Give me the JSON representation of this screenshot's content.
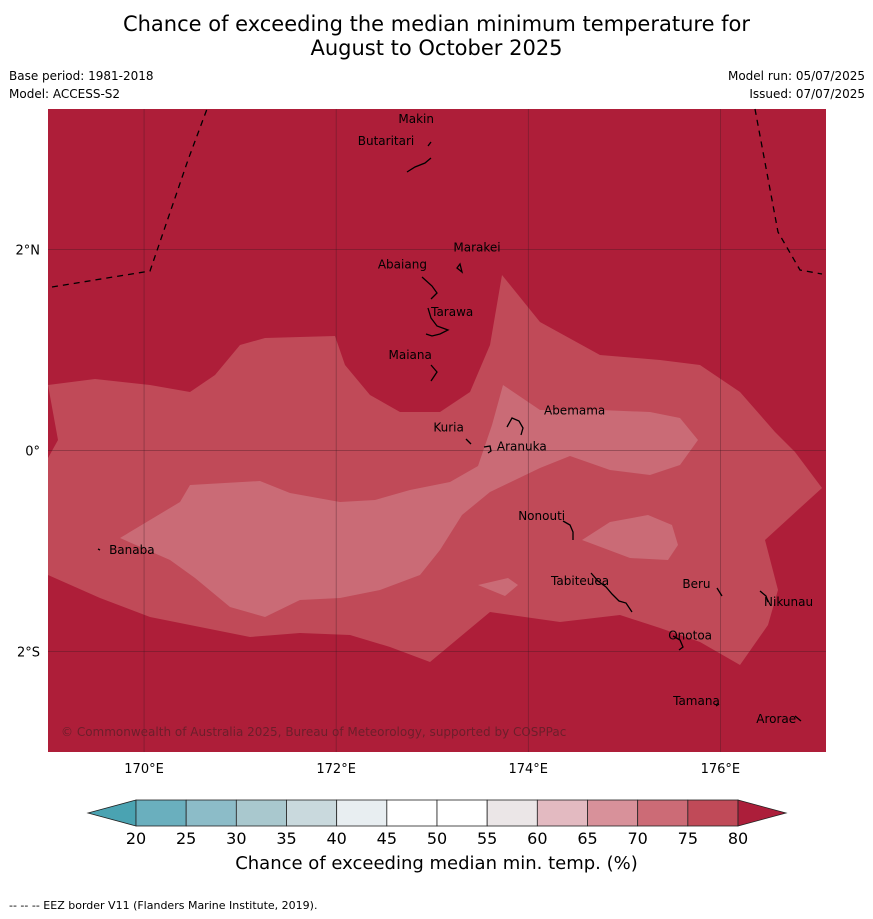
{
  "title": {
    "line1": "Chance of exceeding the median minimum temperature for",
    "line2": "August to October 2025"
  },
  "meta_left": {
    "base_period": "Base period: 1981-2018",
    "model": "Model: ACCESS-S2"
  },
  "meta_right": {
    "model_run": "Model run: 05/07/2025",
    "issued": "Issued: 07/07/2025"
  },
  "map": {
    "lon_range": [
      169,
      177.1
    ],
    "lat_range": [
      -3.0,
      3.4
    ],
    "lat_ticks": [
      {
        "value": 2,
        "label": "2°N"
      },
      {
        "value": 0,
        "label": "0°"
      },
      {
        "value": -2,
        "label": "2°S"
      }
    ],
    "lon_ticks": [
      {
        "value": 170,
        "label": "170°E"
      },
      {
        "value": 172,
        "label": "172°E"
      },
      {
        "value": 174,
        "label": "174°E"
      },
      {
        "value": 176,
        "label": "176°E"
      }
    ],
    "islands": [
      {
        "name": "Makin",
        "lon": 173.0,
        "lat": 3.3
      },
      {
        "name": "Butaritari",
        "lon": 172.8,
        "lat": 3.1
      },
      {
        "name": "Marakei",
        "lon": 173.3,
        "lat": 2.0
      },
      {
        "name": "Abaiang",
        "lon": 172.95,
        "lat": 1.85
      },
      {
        "name": "Tarawa",
        "lon": 173.0,
        "lat": 1.4
      },
      {
        "name": "Maiana",
        "lon": 173.0,
        "lat": 0.95
      },
      {
        "name": "Abemama",
        "lon": 173.9,
        "lat": 0.4
      },
      {
        "name": "Kuria",
        "lon": 173.4,
        "lat": 0.22
      },
      {
        "name": "Aranuka",
        "lon": 173.6,
        "lat": 0.17
      },
      {
        "name": "Banaba",
        "lon": 169.55,
        "lat": -0.87
      },
      {
        "name": "Nonouti",
        "lon": 174.4,
        "lat": -0.65
      },
      {
        "name": "Tabiteuea",
        "lon": 174.8,
        "lat": -1.3
      },
      {
        "name": "Beru",
        "lon": 175.98,
        "lat": -1.33
      },
      {
        "name": "Nikunau",
        "lon": 176.45,
        "lat": -1.35
      },
      {
        "name": "Onotoa",
        "lon": 175.55,
        "lat": -1.8
      },
      {
        "name": "Tamana",
        "lon": 175.97,
        "lat": -2.5
      },
      {
        "name": "Arorae",
        "lon": 176.8,
        "lat": -2.65
      }
    ],
    "copyright": "© Commonwealth of Australia 2025, Bureau of Meteorology, supported by COSPPac"
  },
  "colorbar": {
    "ticks": [
      "20",
      "25",
      "30",
      "35",
      "40",
      "45",
      "50",
      "55",
      "60",
      "65",
      "70",
      "75",
      "80"
    ],
    "colors": [
      "#6aafbe",
      "#8cbcc8",
      "#a9c8ce",
      "#c9d9dd",
      "#e8eef1",
      "#ffffff",
      "#ffffff",
      "#ebe6e7",
      "#e3bac1",
      "#d8919a",
      "#cc6b76",
      "#c04a58"
    ],
    "under_color": "#4aa3b2",
    "over_color": "#ac1e3a",
    "label": "Chance of exceeding median min. temp. (%)"
  },
  "legend_colors": {
    "band_70_75": "#ca6b76",
    "band_75_80": "#c04a58",
    "above_80": "#ae1e39"
  },
  "footnote": "--  --  -- EEZ border V11 (Flanders Marine Institute, 2019)."
}
